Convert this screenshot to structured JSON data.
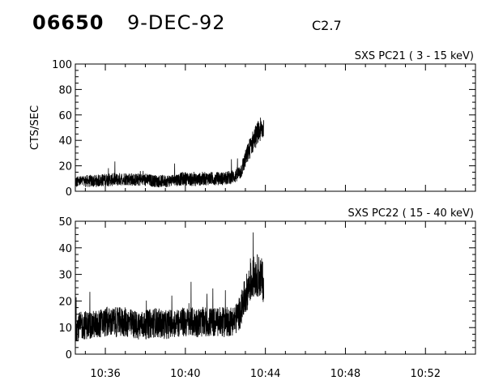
{
  "header": {
    "event_id": "06650",
    "date": "9-DEC-92",
    "flare_class": "C2.7"
  },
  "chart_data": [
    {
      "type": "line",
      "title": "SXS PC21  (  3 - 15 keV)",
      "ylabel": "CTS/SEC",
      "xlabel": "",
      "xlim": [
        "10:34:30",
        "10:54:30"
      ],
      "ylim": [
        0,
        100
      ],
      "yticks": [
        0,
        20,
        40,
        60,
        80,
        100
      ],
      "xticks": [
        "10:36",
        "10:40",
        "10:44",
        "10:48",
        "10:52"
      ],
      "grid": false,
      "series": [
        {
          "x": [
            "10:34:30",
            "10:35:00",
            "10:35:30",
            "10:36:00",
            "10:36:30",
            "10:37:00",
            "10:37:30",
            "10:38:00",
            "10:38:30",
            "10:39:00",
            "10:39:30",
            "10:40:00",
            "10:40:30",
            "10:41:00",
            "10:41:30",
            "10:42:00",
            "10:42:30",
            "10:42:45",
            "10:43:00",
            "10:43:15",
            "10:43:30",
            "10:43:45",
            "10:43:55"
          ],
          "values": [
            7,
            8,
            8,
            9,
            9,
            10,
            9,
            9,
            8,
            8,
            9,
            10,
            9,
            10,
            10,
            10,
            12,
            15,
            25,
            35,
            43,
            48,
            50
          ]
        }
      ]
    },
    {
      "type": "line",
      "title": "SXS PC22  ( 15 - 40 keV)",
      "ylabel": "",
      "xlabel": "",
      "xlim": [
        "10:34:30",
        "10:54:30"
      ],
      "ylim": [
        0,
        50
      ],
      "yticks": [
        0,
        10,
        20,
        30,
        40,
        50
      ],
      "xticks": [
        "10:36",
        "10:40",
        "10:44",
        "10:48",
        "10:52"
      ],
      "grid": false,
      "series": [
        {
          "x": [
            "10:34:30",
            "10:35:00",
            "10:35:30",
            "10:36:00",
            "10:36:30",
            "10:37:00",
            "10:37:30",
            "10:38:00",
            "10:38:30",
            "10:39:00",
            "10:39:30",
            "10:40:00",
            "10:40:30",
            "10:41:00",
            "10:41:30",
            "10:42:00",
            "10:42:30",
            "10:42:45",
            "10:43:00",
            "10:43:15",
            "10:43:30",
            "10:43:45",
            "10:43:55"
          ],
          "values": [
            10,
            11,
            11,
            12,
            12,
            12,
            11,
            11,
            12,
            11,
            12,
            12,
            12,
            12,
            12,
            12,
            13,
            16,
            22,
            27,
            30,
            29,
            27
          ]
        }
      ]
    }
  ]
}
